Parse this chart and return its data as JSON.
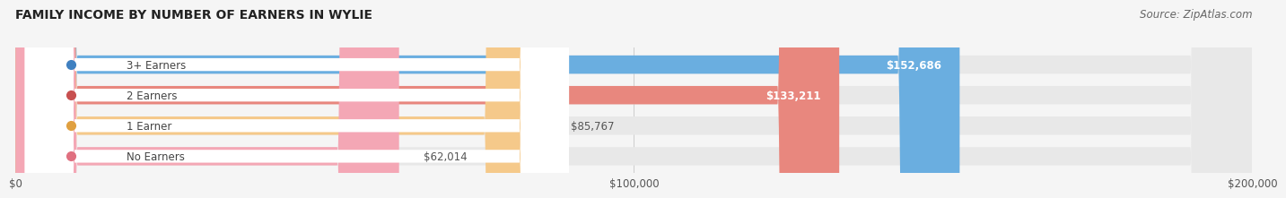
{
  "title": "FAMILY INCOME BY NUMBER OF EARNERS IN WYLIE",
  "source": "Source: ZipAtlas.com",
  "categories": [
    "No Earners",
    "1 Earner",
    "2 Earners",
    "3+ Earners"
  ],
  "values": [
    62014,
    85767,
    133211,
    152686
  ],
  "bar_colors": [
    "#f4a7b5",
    "#f5c98a",
    "#e8877e",
    "#6aaee0"
  ],
  "label_colors": [
    "#e07080",
    "#e0a040",
    "#c85050",
    "#4080c0"
  ],
  "value_labels": [
    "$62,014",
    "$85,767",
    "$133,211",
    "$152,686"
  ],
  "xmax": 200000,
  "xtick_labels": [
    "$0",
    "$100,000",
    "$200,000"
  ],
  "background_color": "#f5f5f5",
  "bar_bg_color": "#e8e8e8",
  "title_fontsize": 10,
  "source_fontsize": 8.5,
  "bar_label_fontsize": 8.5,
  "value_fontsize": 8.5,
  "tick_fontsize": 8.5
}
